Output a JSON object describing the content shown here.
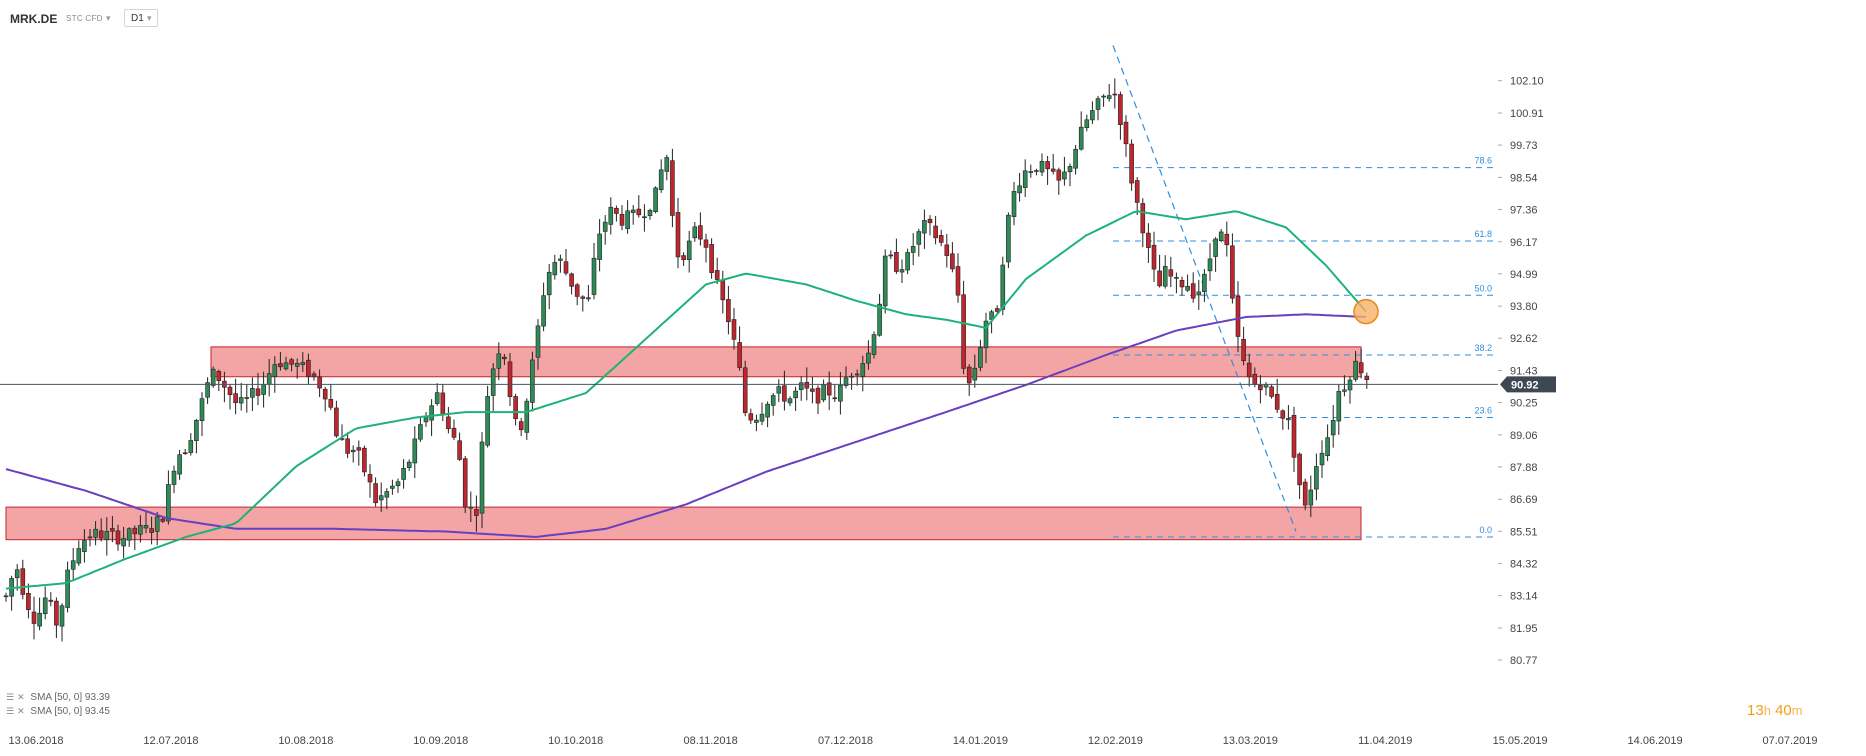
{
  "toolbar": {
    "symbol": "MRK.DE",
    "instrument_type": "STC CFD",
    "timeframe": "D1"
  },
  "legend": [
    {
      "label": "SMA",
      "params": "[50, 0]",
      "value": "93.39"
    },
    {
      "label": "SMA",
      "params": "[50, 0]",
      "value": "93.45"
    }
  ],
  "timer": {
    "hours": "13",
    "hours_unit": "h",
    "minutes": "40",
    "minutes_unit": "m"
  },
  "colors": {
    "bull": "#2e8b57",
    "bear": "#c0262d",
    "sma_fast": "#1db27a",
    "sma_slow": "#6a3fbf",
    "zone_fill": "#f08a8a",
    "zone_stroke": "#c0262d",
    "fib": "#2e8fe0",
    "price_line": "#4a5560",
    "price_label_bg": "#3d4852"
  },
  "chart_data": {
    "type": "candlestick",
    "ylim": [
      80.77,
      103.6
    ],
    "x_ticks": [
      "13.06.2018",
      "12.07.2018",
      "10.08.2018",
      "10.09.2018",
      "10.10.2018",
      "08.11.2018",
      "07.12.2018",
      "14.01.2019",
      "12.02.2019",
      "13.03.2019",
      "11.04.2019",
      "15.05.2019",
      "14.06.2019",
      "07.07.2019"
    ],
    "y_ticks": [
      "102.10",
      "100.91",
      "99.73",
      "98.54",
      "97.36",
      "96.17",
      "94.99",
      "93.80",
      "92.62",
      "91.43",
      "90.25",
      "89.06",
      "87.88",
      "86.69",
      "85.51",
      "84.32",
      "83.14",
      "81.95",
      "80.77"
    ],
    "current_price": "90.92",
    "candles_control": [
      [
        0,
        83.1
      ],
      [
        10,
        84.3
      ],
      [
        20,
        83.0
      ],
      [
        30,
        82.2
      ],
      [
        40,
        83.1
      ],
      [
        52,
        82.0
      ],
      [
        60,
        83.7
      ],
      [
        72,
        85.0
      ],
      [
        84,
        85.4
      ],
      [
        96,
        85.4
      ],
      [
        108,
        85.3
      ],
      [
        120,
        85.3
      ],
      [
        132,
        85.5
      ],
      [
        144,
        85.6
      ],
      [
        156,
        86.0
      ],
      [
        170,
        88.3
      ],
      [
        180,
        88.6
      ],
      [
        192,
        89.8
      ],
      [
        205,
        91.3
      ],
      [
        212,
        91.2
      ],
      [
        222,
        90.7
      ],
      [
        232,
        90.1
      ],
      [
        244,
        90.4
      ],
      [
        258,
        91.0
      ],
      [
        270,
        91.8
      ],
      [
        280,
        91.7
      ],
      [
        292,
        91.6
      ],
      [
        302,
        91.4
      ],
      [
        312,
        91.0
      ],
      [
        322,
        90.5
      ],
      [
        330,
        89.2
      ],
      [
        340,
        88.5
      ],
      [
        350,
        88.5
      ],
      [
        360,
        87.6
      ],
      [
        370,
        86.6
      ],
      [
        380,
        86.9
      ],
      [
        392,
        87.3
      ],
      [
        402,
        88.0
      ],
      [
        412,
        89.0
      ],
      [
        422,
        90.0
      ],
      [
        432,
        90.6
      ],
      [
        442,
        89.3
      ],
      [
        452,
        88.6
      ],
      [
        460,
        86.4
      ],
      [
        470,
        86.2
      ],
      [
        480,
        90.3
      ],
      [
        488,
        91.7
      ],
      [
        496,
        92.6
      ],
      [
        504,
        90.6
      ],
      [
        512,
        88.9
      ],
      [
        522,
        90.6
      ],
      [
        530,
        92.5
      ],
      [
        540,
        94.9
      ],
      [
        552,
        95.6
      ],
      [
        562,
        94.9
      ],
      [
        572,
        94.2
      ],
      [
        582,
        93.9
      ],
      [
        592,
        96.4
      ],
      [
        604,
        97.3
      ],
      [
        616,
        97.0
      ],
      [
        628,
        97.1
      ],
      [
        640,
        97.4
      ],
      [
        650,
        97.9
      ],
      [
        660,
        99.6
      ],
      [
        670,
        95.7
      ],
      [
        680,
        95.8
      ],
      [
        690,
        96.6
      ],
      [
        700,
        96.1
      ],
      [
        712,
        94.4
      ],
      [
        722,
        93.4
      ],
      [
        732,
        91.8
      ],
      [
        740,
        89.7
      ],
      [
        752,
        89.8
      ],
      [
        762,
        90.4
      ],
      [
        772,
        90.6
      ],
      [
        784,
        90.4
      ],
      [
        796,
        90.8
      ],
      [
        808,
        90.4
      ],
      [
        820,
        90.7
      ],
      [
        832,
        90.5
      ],
      [
        842,
        91.3
      ],
      [
        852,
        91.6
      ],
      [
        862,
        92.0
      ],
      [
        872,
        93.6
      ],
      [
        880,
        95.6
      ],
      [
        890,
        95.3
      ],
      [
        900,
        95.4
      ],
      [
        910,
        96.3
      ],
      [
        920,
        96.8
      ],
      [
        932,
        96.3
      ],
      [
        942,
        95.7
      ],
      [
        952,
        94.2
      ],
      [
        960,
        90.6
      ],
      [
        970,
        91.7
      ],
      [
        980,
        93.3
      ],
      [
        990,
        93.4
      ],
      [
        1000,
        96.6
      ],
      [
        1010,
        98.3
      ],
      [
        1020,
        98.8
      ],
      [
        1030,
        99.0
      ],
      [
        1040,
        98.8
      ],
      [
        1052,
        98.3
      ],
      [
        1060,
        98.7
      ],
      [
        1070,
        99.7
      ],
      [
        1080,
        100.6
      ],
      [
        1092,
        101.2
      ],
      [
        1102,
        101.7
      ],
      [
        1110,
        101.6
      ],
      [
        1120,
        99.6
      ],
      [
        1128,
        98.0
      ],
      [
        1136,
        96.9
      ],
      [
        1144,
        95.5
      ],
      [
        1152,
        94.4
      ],
      [
        1160,
        95.1
      ],
      [
        1170,
        94.6
      ],
      [
        1180,
        94.7
      ],
      [
        1190,
        94.2
      ],
      [
        1200,
        94.9
      ],
      [
        1210,
        96.6
      ],
      [
        1220,
        96.2
      ],
      [
        1228,
        93.3
      ],
      [
        1236,
        91.8
      ],
      [
        1246,
        90.9
      ],
      [
        1256,
        91.0
      ],
      [
        1264,
        90.5
      ],
      [
        1274,
        90.0
      ],
      [
        1284,
        89.4
      ],
      [
        1292,
        87.5
      ],
      [
        1300,
        86.2
      ],
      [
        1308,
        87.8
      ],
      [
        1316,
        88.6
      ],
      [
        1324,
        89.2
      ],
      [
        1332,
        90.6
      ],
      [
        1340,
        91.0
      ],
      [
        1348,
        91.7
      ],
      [
        1356,
        91.5
      ],
      [
        1365,
        90.9
      ]
    ],
    "sma_fast_control": [
      [
        0,
        83.4
      ],
      [
        60,
        83.6
      ],
      [
        120,
        84.5
      ],
      [
        180,
        85.3
      ],
      [
        230,
        85.8
      ],
      [
        290,
        87.9
      ],
      [
        350,
        89.3
      ],
      [
        410,
        89.7
      ],
      [
        460,
        89.9
      ],
      [
        520,
        89.9
      ],
      [
        580,
        90.6
      ],
      [
        640,
        92.6
      ],
      [
        700,
        94.6
      ],
      [
        740,
        95.0
      ],
      [
        800,
        94.6
      ],
      [
        850,
        94.0
      ],
      [
        900,
        93.5
      ],
      [
        940,
        93.3
      ],
      [
        980,
        93.0
      ],
      [
        1020,
        94.8
      ],
      [
        1080,
        96.4
      ],
      [
        1130,
        97.3
      ],
      [
        1180,
        97.0
      ],
      [
        1230,
        97.3
      ],
      [
        1280,
        96.7
      ],
      [
        1320,
        95.3
      ],
      [
        1360,
        93.6
      ]
    ],
    "sma_slow_control": [
      [
        0,
        87.8
      ],
      [
        80,
        87.0
      ],
      [
        160,
        86.0
      ],
      [
        230,
        85.6
      ],
      [
        330,
        85.6
      ],
      [
        440,
        85.5
      ],
      [
        530,
        85.3
      ],
      [
        600,
        85.6
      ],
      [
        680,
        86.5
      ],
      [
        760,
        87.7
      ],
      [
        850,
        88.8
      ],
      [
        940,
        89.9
      ],
      [
        1020,
        90.9
      ],
      [
        1100,
        92.0
      ],
      [
        1170,
        92.9
      ],
      [
        1240,
        93.4
      ],
      [
        1300,
        93.5
      ],
      [
        1360,
        93.4
      ]
    ],
    "zones": [
      {
        "name": "resistance-zone",
        "x0": 205,
        "x1": 1355,
        "y_top": 92.3,
        "y_bottom": 91.2
      },
      {
        "name": "support-zone",
        "x0": 0,
        "x1": 1355,
        "y_top": 86.4,
        "y_bottom": 85.2
      }
    ],
    "fib_trend": {
      "from": [
        1107,
        103.4
      ],
      "to": [
        1290,
        85.5
      ]
    },
    "fib_levels": [
      {
        "label": "78.6",
        "value": 98.9
      },
      {
        "label": "61.8",
        "value": 96.2
      },
      {
        "label": "50.0",
        "value": 94.2
      },
      {
        "label": "38.2",
        "value": 92.0
      },
      {
        "label": "23.6",
        "value": 89.7
      },
      {
        "label": "0.0",
        "value": 85.3
      }
    ],
    "crossover_marker": {
      "x": 1360,
      "value": 93.6
    }
  }
}
